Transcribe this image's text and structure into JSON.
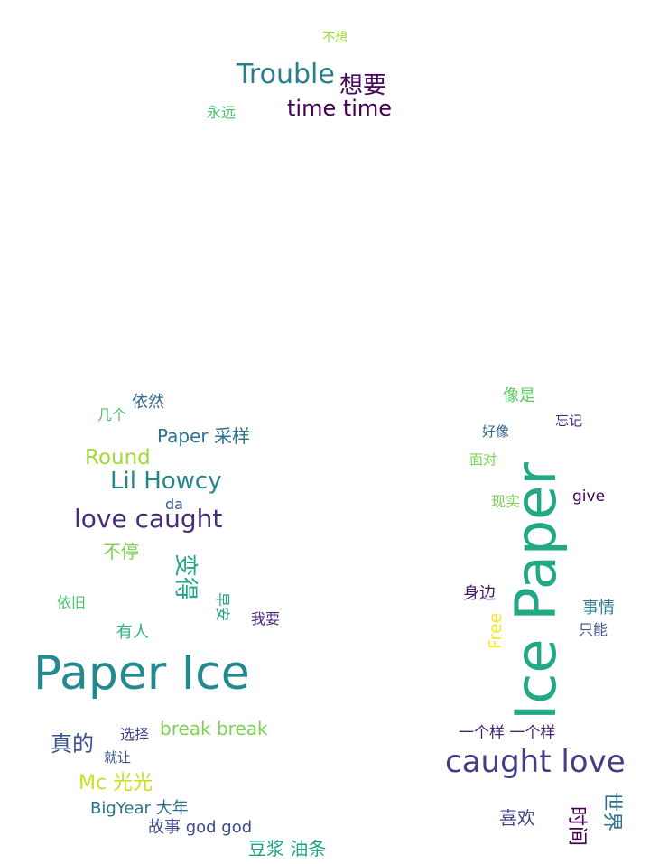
{
  "words": {
    "buxiang": {
      "text": "不想",
      "color": "#a0da39"
    },
    "trouble": {
      "text": "Trouble",
      "color": "#277f8e"
    },
    "xiangyao": {
      "text": "想要",
      "color": "#46085c"
    },
    "yongyuan": {
      "text": "永远",
      "color": "#4ac16d"
    },
    "timetime": {
      "text": "time time",
      "color": "#440154"
    },
    "jige": {
      "text": "几个",
      "color": "#4ac16d"
    },
    "yiran": {
      "text": "依然",
      "color": "#31688e"
    },
    "papercaiyang": {
      "text": "Paper 采样",
      "color": "#2c728e"
    },
    "round": {
      "text": "Round",
      "color": "#a0da39"
    },
    "lilhowcy": {
      "text": "Lil Howcy",
      "color": "#23888e"
    },
    "da": {
      "text": "da",
      "color": "#39568c"
    },
    "lovecaught": {
      "text": "love caught",
      "color": "#472d7b"
    },
    "buting": {
      "text": "不停",
      "color": "#7ad151"
    },
    "biande": {
      "text": "变得",
      "color": "#21a585"
    },
    "yijiu": {
      "text": "依旧",
      "color": "#4ac16d"
    },
    "zaoan": {
      "text": "早安",
      "color": "#1fa188"
    },
    "woyao": {
      "text": "我要",
      "color": "#482878"
    },
    "youren": {
      "text": "有人",
      "color": "#2db27d"
    },
    "paperice": {
      "text": "Paper Ice",
      "color": "#23898e"
    },
    "zhende": {
      "text": "真的",
      "color": "#3b528b"
    },
    "xuanze": {
      "text": "选择",
      "color": "#414487"
    },
    "jiurang": {
      "text": "就让",
      "color": "#39568c"
    },
    "breakbreak": {
      "text": "break break",
      "color": "#7ad151"
    },
    "mcguangguang": {
      "text": "Mc 光光",
      "color": "#c8e020"
    },
    "bigyear": {
      "text": "BigYear 大年",
      "color": "#2c728e"
    },
    "gushigod": {
      "text": "故事 god god",
      "color": "#3e4a89"
    },
    "doujiang": {
      "text": "豆浆 油条",
      "color": "#1fa188"
    },
    "xiangshi": {
      "text": "像是",
      "color": "#5ec962"
    },
    "wangji": {
      "text": "忘记",
      "color": "#482878"
    },
    "haoxiang": {
      "text": "好像",
      "color": "#31688e"
    },
    "miandui": {
      "text": "面对",
      "color": "#7ad151"
    },
    "icepaper": {
      "text": "Ice Paper",
      "color": "#22a884"
    },
    "xianshi": {
      "text": "现实",
      "color": "#7ad151"
    },
    "give": {
      "text": "give",
      "color": "#440154"
    },
    "shenbian": {
      "text": "身边",
      "color": "#48186a"
    },
    "free": {
      "text": "Free",
      "color": "#fde725"
    },
    "shiqing": {
      "text": "事情",
      "color": "#2a788e"
    },
    "zhineng": {
      "text": "只能",
      "color": "#3b528b"
    },
    "yigeyang": {
      "text": "一个样 一个样",
      "color": "#482475"
    },
    "caughtlove": {
      "text": "caught love",
      "color": "#433e85"
    },
    "xihuan": {
      "text": "喜欢",
      "color": "#414487"
    },
    "shijian": {
      "text": "时间",
      "color": "#440154"
    },
    "shijie": {
      "text": "世界",
      "color": "#2c728e"
    }
  }
}
